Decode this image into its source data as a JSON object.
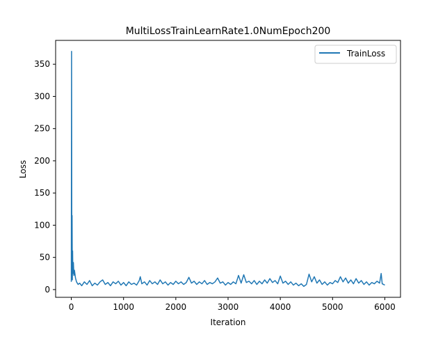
{
  "chart_data": {
    "type": "line",
    "title": "MultiLossTrainLearnRate1.0NumEpoch200",
    "xlabel": "Iteration",
    "ylabel": "Loss",
    "xlim": [
      -300,
      6300
    ],
    "ylim": [
      -12,
      387
    ],
    "xticks": [
      0,
      1000,
      2000,
      3000,
      4000,
      5000,
      6000
    ],
    "yticks": [
      0,
      50,
      100,
      150,
      200,
      250,
      300,
      350
    ],
    "xtick_labels": [
      "0",
      "1000",
      "2000",
      "3000",
      "4000",
      "5000",
      "6000"
    ],
    "ytick_labels": [
      "0",
      "50",
      "100",
      "150",
      "200",
      "250",
      "300",
      "350"
    ],
    "grid": false,
    "legend": {
      "position": "top-right",
      "entries": [
        "TrainLoss"
      ]
    },
    "series": [
      {
        "name": "TrainLoss",
        "color": "#1f77b4",
        "points": [
          [
            0,
            12
          ],
          [
            5,
            370
          ],
          [
            10,
            20
          ],
          [
            15,
            115
          ],
          [
            20,
            15
          ],
          [
            25,
            60
          ],
          [
            30,
            25
          ],
          [
            40,
            42
          ],
          [
            50,
            22
          ],
          [
            60,
            30
          ],
          [
            80,
            18
          ],
          [
            100,
            12
          ],
          [
            130,
            8
          ],
          [
            160,
            10
          ],
          [
            200,
            6
          ],
          [
            250,
            12
          ],
          [
            300,
            8
          ],
          [
            350,
            14
          ],
          [
            400,
            6
          ],
          [
            450,
            10
          ],
          [
            500,
            7
          ],
          [
            550,
            12
          ],
          [
            600,
            15
          ],
          [
            650,
            8
          ],
          [
            700,
            11
          ],
          [
            750,
            6
          ],
          [
            800,
            12
          ],
          [
            850,
            9
          ],
          [
            900,
            13
          ],
          [
            950,
            7
          ],
          [
            1000,
            11
          ],
          [
            1050,
            6
          ],
          [
            1100,
            12
          ],
          [
            1150,
            8
          ],
          [
            1200,
            10
          ],
          [
            1250,
            7
          ],
          [
            1300,
            14
          ],
          [
            1320,
            20
          ],
          [
            1350,
            9
          ],
          [
            1400,
            12
          ],
          [
            1450,
            7
          ],
          [
            1500,
            14
          ],
          [
            1550,
            9
          ],
          [
            1600,
            12
          ],
          [
            1650,
            8
          ],
          [
            1700,
            15
          ],
          [
            1750,
            9
          ],
          [
            1800,
            12
          ],
          [
            1850,
            7
          ],
          [
            1900,
            11
          ],
          [
            1950,
            8
          ],
          [
            2000,
            13
          ],
          [
            2050,
            9
          ],
          [
            2100,
            12
          ],
          [
            2150,
            8
          ],
          [
            2200,
            11
          ],
          [
            2250,
            19
          ],
          [
            2300,
            10
          ],
          [
            2350,
            13
          ],
          [
            2400,
            8
          ],
          [
            2450,
            12
          ],
          [
            2500,
            9
          ],
          [
            2550,
            14
          ],
          [
            2600,
            8
          ],
          [
            2650,
            11
          ],
          [
            2700,
            9
          ],
          [
            2750,
            12
          ],
          [
            2800,
            18
          ],
          [
            2850,
            10
          ],
          [
            2900,
            12
          ],
          [
            2950,
            7
          ],
          [
            3000,
            11
          ],
          [
            3050,
            8
          ],
          [
            3100,
            12
          ],
          [
            3150,
            9
          ],
          [
            3200,
            22
          ],
          [
            3250,
            10
          ],
          [
            3300,
            23
          ],
          [
            3350,
            11
          ],
          [
            3400,
            13
          ],
          [
            3450,
            9
          ],
          [
            3500,
            14
          ],
          [
            3550,
            8
          ],
          [
            3600,
            13
          ],
          [
            3650,
            9
          ],
          [
            3700,
            15
          ],
          [
            3750,
            10
          ],
          [
            3800,
            17
          ],
          [
            3850,
            11
          ],
          [
            3900,
            14
          ],
          [
            3950,
            9
          ],
          [
            4000,
            21
          ],
          [
            4050,
            10
          ],
          [
            4100,
            13
          ],
          [
            4150,
            8
          ],
          [
            4200,
            12
          ],
          [
            4250,
            7
          ],
          [
            4300,
            10
          ],
          [
            4350,
            6
          ],
          [
            4400,
            9
          ],
          [
            4450,
            5
          ],
          [
            4500,
            8
          ],
          [
            4550,
            24
          ],
          [
            4600,
            12
          ],
          [
            4650,
            20
          ],
          [
            4700,
            10
          ],
          [
            4750,
            15
          ],
          [
            4800,
            8
          ],
          [
            4850,
            12
          ],
          [
            4900,
            7
          ],
          [
            4950,
            11
          ],
          [
            5000,
            9
          ],
          [
            5050,
            14
          ],
          [
            5100,
            11
          ],
          [
            5150,
            20
          ],
          [
            5200,
            12
          ],
          [
            5250,
            18
          ],
          [
            5300,
            10
          ],
          [
            5350,
            15
          ],
          [
            5400,
            9
          ],
          [
            5450,
            17
          ],
          [
            5500,
            10
          ],
          [
            5550,
            14
          ],
          [
            5600,
            8
          ],
          [
            5650,
            12
          ],
          [
            5700,
            7
          ],
          [
            5750,
            11
          ],
          [
            5800,
            9
          ],
          [
            5850,
            13
          ],
          [
            5900,
            10
          ],
          [
            5930,
            25
          ],
          [
            5950,
            9
          ],
          [
            6000,
            7
          ]
        ]
      }
    ]
  }
}
